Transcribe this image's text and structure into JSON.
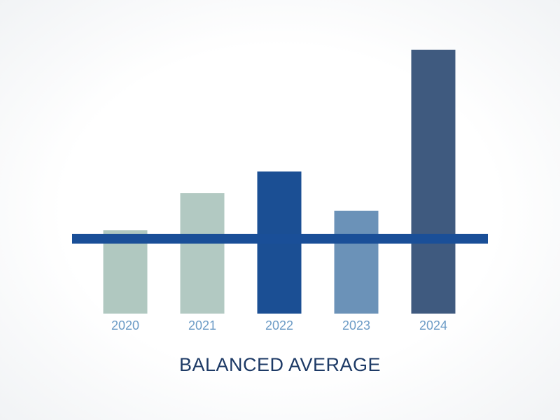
{
  "chart_data": {
    "type": "bar",
    "title": "BALANCED AVERAGE",
    "categories": [
      "2020",
      "2021",
      "2022",
      "2023",
      "2024"
    ],
    "values": [
      119,
      172,
      203,
      147,
      377
    ],
    "colors": [
      "#b0c8c0",
      "#b2c9c2",
      "#1b4f94",
      "#6b92b8",
      "#3f5a7f"
    ],
    "reference_line": {
      "value": 107,
      "color": "#1a4f98"
    },
    "ylim": [
      0,
      400
    ]
  }
}
